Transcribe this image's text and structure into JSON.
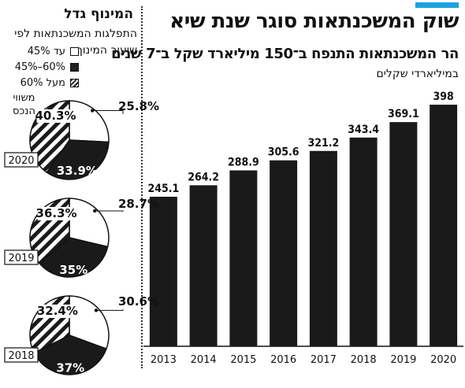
{
  "header": {
    "title": "שוק המשכנתאות סוגר שנת שיא",
    "subtitle": "הר המשכנתאות התנפח ב־150 מיליארד שקל ב־7 שנים",
    "unit": "במיליארדי שקלים"
  },
  "colors": {
    "accent": "#1aa3e0",
    "bar": "#1a1a1a",
    "text": "#111111"
  },
  "side": {
    "title": "המינוף גדל",
    "subtitle_line1": "התפלגות המשכנתאות לפי",
    "subtitle_line2": "שיעור המינוף",
    "mortgage_label_1": "משווי",
    "mortgage_label_2": "הנכס",
    "legend": [
      {
        "label": "עד 45%",
        "style": "white"
      },
      {
        "label": "60%–45%",
        "style": "black"
      },
      {
        "label": "מעל 60%",
        "style": "striped"
      }
    ]
  },
  "chart_data": [
    {
      "type": "bar",
      "title": "שוק המשכנתאות סוגר שנת שיא",
      "subtitle": "הר המשכנתאות התנפח ב־150 מיליארד שקל ב־7 שנים",
      "ylabel": "במיליארדי שקלים",
      "categories": [
        "2013",
        "2014",
        "2015",
        "2016",
        "2017",
        "2018",
        "2019",
        "2020"
      ],
      "values": [
        245.1,
        264.2,
        288.9,
        305.6,
        321.2,
        343.4,
        369.1,
        398
      ],
      "value_labels": [
        "245.1",
        "264.2",
        "288.9",
        "305.6",
        "321.2",
        "343.4",
        "369.1",
        "398"
      ],
      "ylim": [
        0,
        400
      ],
      "grid": false
    },
    {
      "type": "pie",
      "title": "התפלגות המשכנתאות לפי שיעור המינוף",
      "series": [
        {
          "name": "2020",
          "values": [
            25.8,
            33.9,
            40.3
          ],
          "labels": [
            "25.8%",
            "33.9%",
            "40.3%"
          ]
        },
        {
          "name": "2019",
          "values": [
            28.7,
            35,
            36.3
          ],
          "labels": [
            "28.7%",
            "35%",
            "36.3%"
          ]
        },
        {
          "name": "2018",
          "values": [
            30.6,
            37,
            32.4
          ],
          "labels": [
            "30.6%",
            "37%",
            "32.4%"
          ]
        }
      ],
      "categories": [
        "עד 45%",
        "60%–45%",
        "מעל 60%"
      ]
    }
  ]
}
